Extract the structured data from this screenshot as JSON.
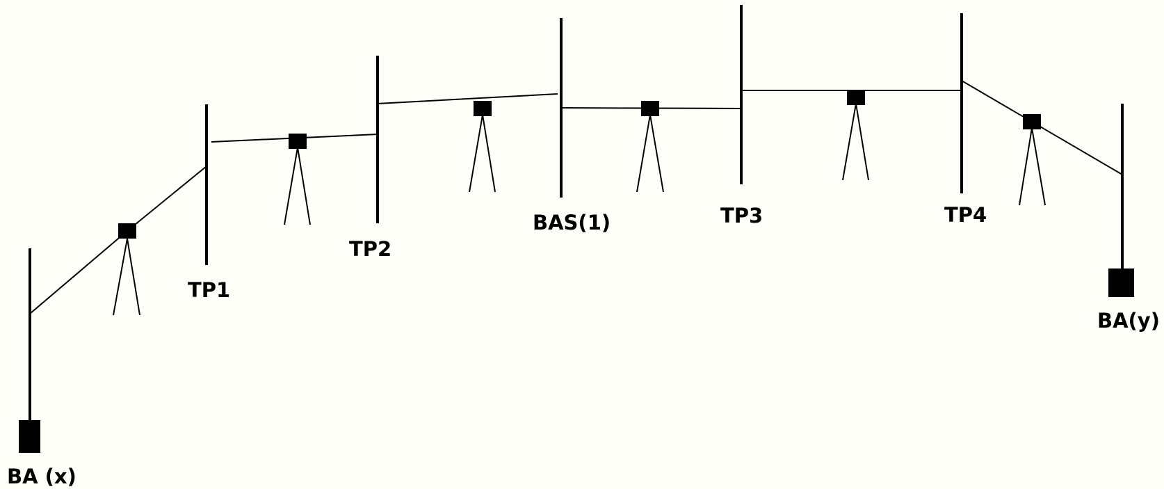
{
  "staff_labels": {
    "ba_x": "BA (x)",
    "tp1": "TP1",
    "tp2": "TP2",
    "bas1": "BAS(1)",
    "tp3": "TP3",
    "tp4": "TP4",
    "ba_y": "BA(y)"
  },
  "colors": {
    "background": "#fffff9",
    "ink": "#000000"
  }
}
